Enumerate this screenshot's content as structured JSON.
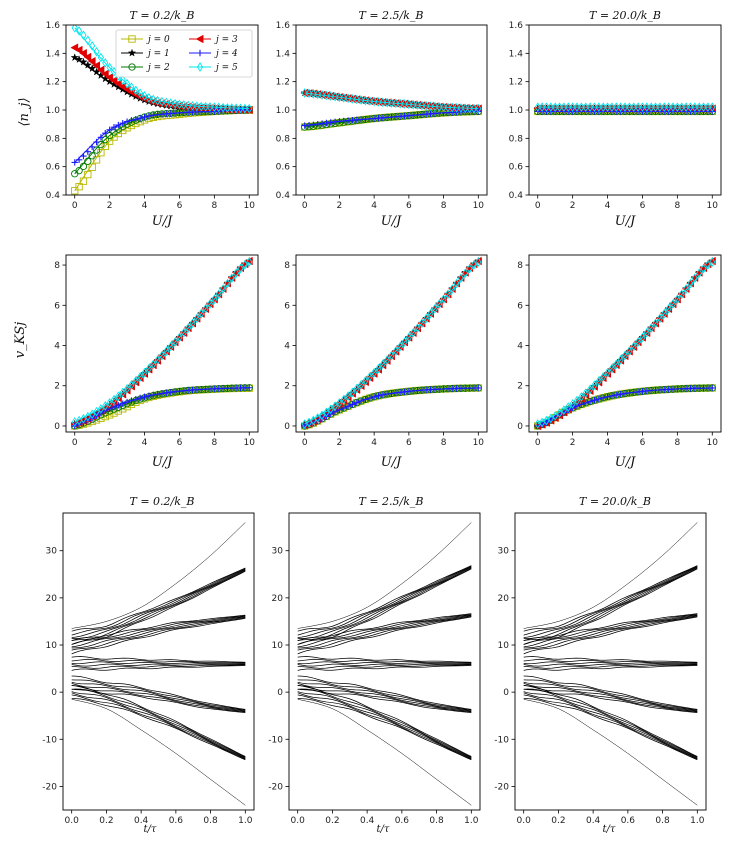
{
  "figure": {
    "columns": [
      {
        "title": "T = 0.2/k_B"
      },
      {
        "title": "T = 2.5/k_B"
      },
      {
        "title": "T = 20.0/k_B"
      }
    ],
    "row1": {
      "ylabel": "⟨n_j⟩",
      "xlabel": "U/J"
    },
    "row2": {
      "ylabel": "v_KSj",
      "xlabel": "U/J"
    },
    "row3": {
      "xlabel": "t/τ"
    }
  },
  "series_styles": [
    {
      "name": "j = 0",
      "color": "#b8b800",
      "marker": "square"
    },
    {
      "name": "j = 1",
      "color": "#000000",
      "marker": "star"
    },
    {
      "name": "j = 2",
      "color": "#007a00",
      "marker": "circle"
    },
    {
      "name": "j = 3",
      "color": "#e00000",
      "marker": "triangle-left"
    },
    {
      "name": "j = 4",
      "color": "#1a1aff",
      "marker": "plus"
    },
    {
      "name": "j = 5",
      "color": "#00e5ee",
      "marker": "thin-diamond"
    }
  ],
  "chart_data": [
    {
      "type": "line",
      "title": "T = 0.2/k_B",
      "xlabel": "U/J",
      "ylabel": "⟨n_j⟩",
      "xlim": [
        -0.5,
        10.5
      ],
      "ylim": [
        0.4,
        1.6
      ],
      "xticks": [
        0,
        2,
        4,
        6,
        8,
        10
      ],
      "yticks": [
        0.4,
        0.6,
        0.8,
        1.0,
        1.2,
        1.4,
        1.6
      ],
      "legend": "top-center",
      "x": [
        0,
        2,
        4,
        6,
        8,
        10
      ],
      "series": [
        {
          "name": "j = 0",
          "values": [
            0.43,
            0.78,
            0.93,
            0.97,
            0.99,
            1.0
          ]
        },
        {
          "name": "j = 1",
          "values": [
            1.37,
            1.2,
            1.07,
            1.02,
            1.01,
            1.0
          ]
        },
        {
          "name": "j = 2",
          "values": [
            0.55,
            0.82,
            0.95,
            0.98,
            0.99,
            1.0
          ]
        },
        {
          "name": "j = 3",
          "values": [
            1.44,
            1.23,
            1.08,
            1.03,
            1.01,
            1.0
          ]
        },
        {
          "name": "j = 4",
          "values": [
            0.63,
            0.86,
            0.95,
            0.98,
            0.99,
            1.0
          ]
        },
        {
          "name": "j = 5",
          "values": [
            1.58,
            1.3,
            1.1,
            1.04,
            1.02,
            1.01
          ]
        }
      ]
    },
    {
      "type": "line",
      "title": "T = 2.5/k_B",
      "xlabel": "U/J",
      "ylabel": "",
      "xlim": [
        -0.5,
        10.5
      ],
      "ylim": [
        0.4,
        1.6
      ],
      "xticks": [
        0,
        2,
        4,
        6,
        8,
        10
      ],
      "yticks": [
        0.4,
        0.6,
        0.8,
        1.0,
        1.2,
        1.4,
        1.6
      ],
      "x": [
        0,
        2,
        4,
        6,
        8,
        10
      ],
      "series": [
        {
          "name": "j = 0",
          "values": [
            0.88,
            0.91,
            0.94,
            0.96,
            0.98,
            0.99
          ]
        },
        {
          "name": "j = 1",
          "values": [
            1.12,
            1.09,
            1.06,
            1.04,
            1.02,
            1.01
          ]
        },
        {
          "name": "j = 2",
          "values": [
            0.88,
            0.91,
            0.94,
            0.96,
            0.98,
            0.99
          ]
        },
        {
          "name": "j = 3",
          "values": [
            1.12,
            1.09,
            1.06,
            1.04,
            1.02,
            1.01
          ]
        },
        {
          "name": "j = 4",
          "values": [
            0.89,
            0.92,
            0.94,
            0.96,
            0.98,
            0.99
          ]
        },
        {
          "name": "j = 5",
          "values": [
            1.12,
            1.09,
            1.06,
            1.04,
            1.02,
            1.01
          ]
        }
      ]
    },
    {
      "type": "line",
      "title": "T = 20.0/k_B",
      "xlabel": "U/J",
      "ylabel": "",
      "xlim": [
        -0.5,
        10.5
      ],
      "ylim": [
        0.4,
        1.6
      ],
      "xticks": [
        0,
        2,
        4,
        6,
        8,
        10
      ],
      "yticks": [
        0.4,
        0.6,
        0.8,
        1.0,
        1.2,
        1.4,
        1.6
      ],
      "x": [
        0,
        2,
        4,
        6,
        8,
        10
      ],
      "series": [
        {
          "name": "j = 0",
          "values": [
            0.99,
            0.99,
            0.99,
            0.99,
            0.99,
            0.99
          ]
        },
        {
          "name": "j = 1",
          "values": [
            1.01,
            1.01,
            1.01,
            1.01,
            1.01,
            1.01
          ]
        },
        {
          "name": "j = 2",
          "values": [
            0.99,
            0.99,
            0.99,
            0.99,
            0.99,
            0.99
          ]
        },
        {
          "name": "j = 3",
          "values": [
            1.01,
            1.01,
            1.01,
            1.01,
            1.01,
            1.01
          ]
        },
        {
          "name": "j = 4",
          "values": [
            0.99,
            0.99,
            0.99,
            0.99,
            0.99,
            0.99
          ]
        },
        {
          "name": "j = 5",
          "values": [
            1.02,
            1.02,
            1.02,
            1.02,
            1.02,
            1.02
          ]
        }
      ]
    },
    {
      "type": "line",
      "title": "",
      "xlabel": "U/J",
      "ylabel": "v_KSj",
      "xlim": [
        -0.5,
        10.5
      ],
      "ylim": [
        -0.3,
        8.5
      ],
      "xticks": [
        0,
        2,
        4,
        6,
        8,
        10
      ],
      "yticks": [
        0,
        2,
        4,
        6,
        8
      ],
      "x": [
        0,
        2,
        4,
        6,
        8,
        10
      ],
      "series": [
        {
          "name": "j = 0",
          "values": [
            0.0,
            0.55,
            1.35,
            1.7,
            1.83,
            1.88
          ]
        },
        {
          "name": "j = 1",
          "values": [
            0.1,
            1.05,
            2.6,
            4.4,
            6.3,
            8.2
          ]
        },
        {
          "name": "j = 2",
          "values": [
            0.0,
            0.75,
            1.4,
            1.72,
            1.84,
            1.9
          ]
        },
        {
          "name": "j = 3",
          "values": [
            0.1,
            1.05,
            2.6,
            4.4,
            6.3,
            8.2
          ]
        },
        {
          "name": "j = 4",
          "values": [
            0.0,
            0.85,
            1.45,
            1.73,
            1.85,
            1.9
          ]
        },
        {
          "name": "j = 5",
          "values": [
            0.2,
            1.15,
            2.65,
            4.4,
            6.3,
            8.15
          ]
        }
      ]
    },
    {
      "type": "line",
      "title": "",
      "xlabel": "U/J",
      "ylabel": "",
      "xlim": [
        -0.5,
        10.5
      ],
      "ylim": [
        -0.3,
        8.5
      ],
      "xticks": [
        0,
        2,
        4,
        6,
        8,
        10
      ],
      "yticks": [
        0,
        2,
        4,
        6,
        8
      ],
      "x": [
        0,
        2,
        4,
        6,
        8,
        10
      ],
      "series": [
        {
          "name": "j = 0",
          "values": [
            0.0,
            0.8,
            1.45,
            1.72,
            1.84,
            1.89
          ]
        },
        {
          "name": "j = 1",
          "values": [
            0.05,
            1.1,
            2.6,
            4.4,
            6.3,
            8.2
          ]
        },
        {
          "name": "j = 2",
          "values": [
            0.0,
            0.8,
            1.45,
            1.72,
            1.84,
            1.89
          ]
        },
        {
          "name": "j = 3",
          "values": [
            0.05,
            1.1,
            2.6,
            4.4,
            6.3,
            8.2
          ]
        },
        {
          "name": "j = 4",
          "values": [
            0.0,
            0.8,
            1.45,
            1.72,
            1.84,
            1.89
          ]
        },
        {
          "name": "j = 5",
          "values": [
            0.1,
            1.15,
            2.65,
            4.4,
            6.3,
            8.15
          ]
        }
      ]
    },
    {
      "type": "line",
      "title": "",
      "xlabel": "U/J",
      "ylabel": "",
      "xlim": [
        -0.5,
        10.5
      ],
      "ylim": [
        -0.3,
        8.5
      ],
      "xticks": [
        0,
        2,
        4,
        6,
        8,
        10
      ],
      "yticks": [
        0,
        2,
        4,
        6,
        8
      ],
      "x": [
        0,
        2,
        4,
        6,
        8,
        10
      ],
      "series": [
        {
          "name": "j = 0",
          "values": [
            0.0,
            0.9,
            1.45,
            1.72,
            1.84,
            1.89
          ]
        },
        {
          "name": "j = 1",
          "values": [
            0.0,
            1.0,
            2.6,
            4.4,
            6.3,
            8.2
          ]
        },
        {
          "name": "j = 2",
          "values": [
            0.0,
            0.9,
            1.45,
            1.72,
            1.84,
            1.89
          ]
        },
        {
          "name": "j = 3",
          "values": [
            0.0,
            1.0,
            2.6,
            4.4,
            6.3,
            8.2
          ]
        },
        {
          "name": "j = 4",
          "values": [
            0.0,
            0.9,
            1.45,
            1.72,
            1.84,
            1.89
          ]
        },
        {
          "name": "j = 5",
          "values": [
            0.1,
            1.1,
            2.65,
            4.4,
            6.3,
            8.15
          ]
        }
      ]
    },
    {
      "type": "line",
      "title": "T = 0.2/k_B",
      "xlabel": "t/τ",
      "ylabel": "",
      "xlim": [
        -0.05,
        1.05
      ],
      "ylim": [
        -25,
        38
      ],
      "xticks": [
        0.0,
        0.2,
        0.4,
        0.6,
        0.8,
        1.0
      ],
      "yticks": [
        -20,
        -10,
        0,
        10,
        20,
        30
      ],
      "x": [
        0,
        0.2,
        0.4,
        0.6,
        0.8,
        1.0
      ],
      "series": [
        {
          "values": [
            13.5,
            15,
            18,
            23,
            29,
            36
          ]
        },
        {
          "values": [
            11.5,
            13,
            16,
            19,
            22.5,
            26
          ]
        },
        {
          "values": [
            9.5,
            11,
            12.5,
            14,
            15,
            16
          ]
        },
        {
          "values": [
            6,
            6,
            6,
            6,
            6,
            6
          ]
        },
        {
          "values": [
            2,
            1,
            0,
            -1.5,
            -3,
            -4
          ]
        },
        {
          "values": [
            0,
            -1.5,
            -4,
            -7,
            -10.5,
            -14
          ]
        },
        {
          "values": [
            -1.5,
            -3.5,
            -8,
            -13,
            -18.5,
            -24
          ]
        }
      ]
    },
    {
      "type": "line",
      "title": "T = 2.5/k_B",
      "xlabel": "t/τ",
      "ylabel": "",
      "xlim": [
        -0.05,
        1.05
      ],
      "ylim": [
        -25,
        38
      ],
      "xticks": [
        0.0,
        0.2,
        0.4,
        0.6,
        0.8,
        1.0
      ],
      "yticks": [
        -20,
        -10,
        0,
        10,
        20,
        30
      ],
      "x": [
        0,
        0.2,
        0.4,
        0.6,
        0.8,
        1.0
      ],
      "series": [
        {
          "values": [
            13.5,
            15,
            18,
            23,
            29,
            36
          ]
        },
        {
          "values": [
            11.5,
            13,
            16,
            19.5,
            23,
            26.5
          ]
        },
        {
          "values": [
            9.5,
            11,
            12.5,
            14,
            15.2,
            16.3
          ]
        },
        {
          "values": [
            6,
            6,
            6,
            6,
            6,
            6
          ]
        },
        {
          "values": [
            2,
            1,
            0,
            -1.5,
            -3,
            -4
          ]
        },
        {
          "values": [
            0,
            -1.5,
            -4,
            -7,
            -10.5,
            -14
          ]
        },
        {
          "values": [
            -1.5,
            -3.5,
            -8,
            -13,
            -18.5,
            -24
          ]
        }
      ]
    },
    {
      "type": "line",
      "title": "T = 20.0/k_B",
      "xlabel": "t/τ",
      "ylabel": "",
      "xlim": [
        -0.05,
        1.05
      ],
      "ylim": [
        -25,
        38
      ],
      "xticks": [
        0.0,
        0.2,
        0.4,
        0.6,
        0.8,
        1.0
      ],
      "yticks": [
        -20,
        -10,
        0,
        10,
        20,
        30
      ],
      "x": [
        0,
        0.2,
        0.4,
        0.6,
        0.8,
        1.0
      ],
      "series": [
        {
          "values": [
            13.5,
            15,
            18,
            23,
            29,
            36
          ]
        },
        {
          "values": [
            11.5,
            13,
            16,
            19.5,
            23,
            26.5
          ]
        },
        {
          "values": [
            9.5,
            11,
            12.5,
            14,
            15.2,
            16.3
          ]
        },
        {
          "values": [
            6,
            6,
            6,
            6,
            6,
            6
          ]
        },
        {
          "values": [
            2,
            1,
            0,
            -1.5,
            -3,
            -4
          ]
        },
        {
          "values": [
            0,
            -1.5,
            -4,
            -7,
            -10.5,
            -14
          ]
        },
        {
          "values": [
            -1.5,
            -3.5,
            -8,
            -13,
            -18.5,
            -24
          ]
        }
      ]
    }
  ]
}
